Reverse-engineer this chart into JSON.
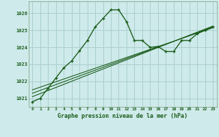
{
  "title": "Graphe pression niveau de la mer (hPa)",
  "background_color": "#ceeaea",
  "grid_color": "#aacece",
  "line_color": "#1a5c1a",
  "xlim": [
    -0.5,
    23.5
  ],
  "ylim": [
    1020.5,
    1026.7
  ],
  "yticks": [
    1021,
    1022,
    1023,
    1024,
    1025,
    1026
  ],
  "xticks": [
    0,
    1,
    2,
    3,
    4,
    5,
    6,
    7,
    8,
    9,
    10,
    11,
    12,
    13,
    14,
    15,
    16,
    17,
    18,
    19,
    20,
    21,
    22,
    23
  ],
  "series1_x": [
    0,
    1,
    2,
    3,
    4,
    5,
    6,
    7,
    8,
    9,
    10,
    11,
    12,
    13,
    14,
    15,
    16,
    17,
    18,
    19,
    20,
    21,
    22,
    23
  ],
  "series1_y": [
    1020.8,
    1021.0,
    1021.6,
    1022.2,
    1022.8,
    1023.2,
    1023.8,
    1024.4,
    1025.2,
    1025.7,
    1026.2,
    1026.2,
    1025.5,
    1024.4,
    1024.4,
    1024.0,
    1024.05,
    1023.75,
    1023.75,
    1024.4,
    1024.4,
    1024.8,
    1025.0,
    1025.2
  ],
  "series2_x": [
    0,
    23
  ],
  "series2_y": [
    1021.1,
    1025.25
  ],
  "series3_x": [
    0,
    23
  ],
  "series3_y": [
    1021.3,
    1025.2
  ],
  "series4_x": [
    0,
    23
  ],
  "series4_y": [
    1021.5,
    1025.15
  ]
}
